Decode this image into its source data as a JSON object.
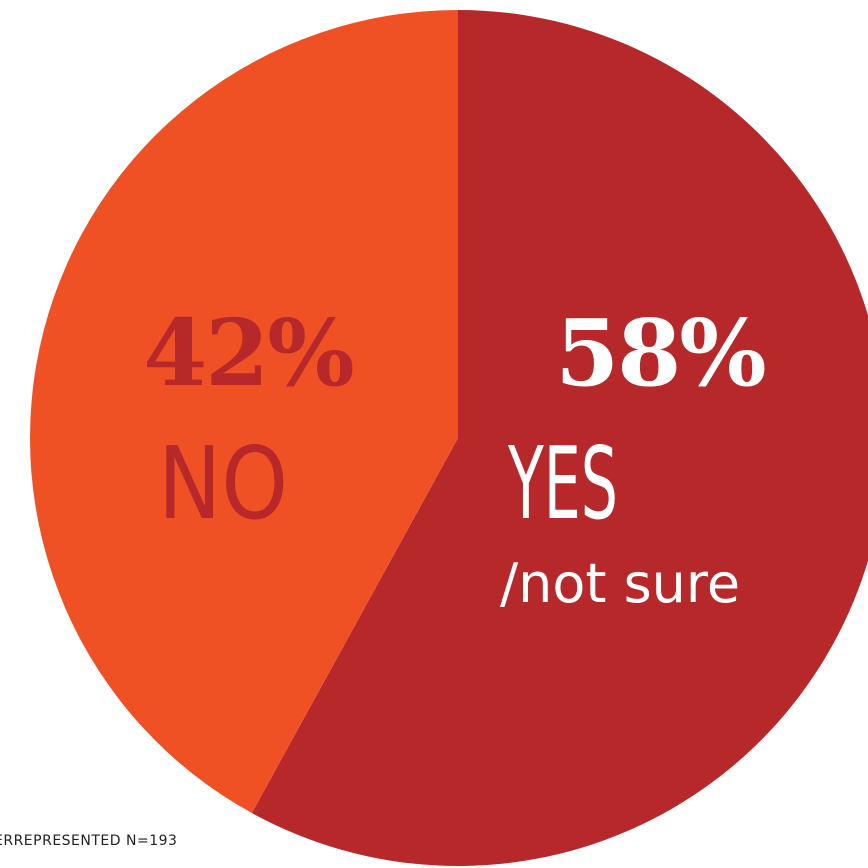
{
  "chart_data": {
    "type": "pie",
    "slices": [
      {
        "percent_label": "58%",
        "label": "YES",
        "sublabel": "/not sure",
        "value": 58,
        "color": "#b7282a",
        "text_color": "#ffffff"
      },
      {
        "percent_label": "42%",
        "label": "NO",
        "sublabel": "",
        "value": 42,
        "color": "#ef5125",
        "text_color": "#b7282a"
      }
    ],
    "start": "top",
    "direction": "clockwise"
  },
  "footnote": "ERREPRESENTED N=193"
}
